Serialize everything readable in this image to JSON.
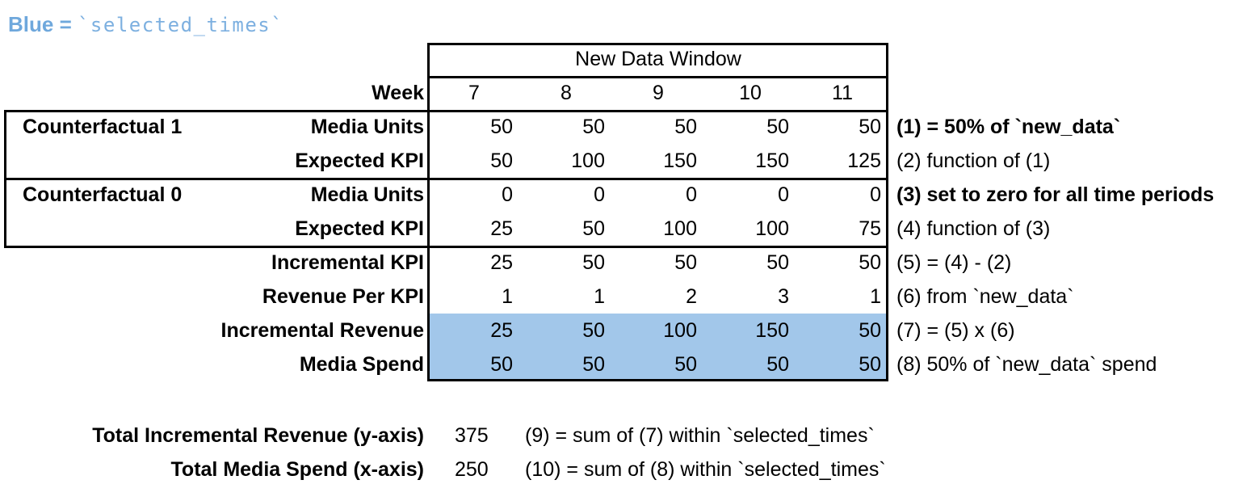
{
  "legend": {
    "prefix": "Blue = ",
    "code": "`selected_times`"
  },
  "colors": {
    "highlight_blue": "#a2c7ea",
    "legend_blue": "#6fa8dc",
    "border": "#000000"
  },
  "table": {
    "header": "New Data Window",
    "week_label": "Week",
    "weeks": [
      "7",
      "8",
      "9",
      "10",
      "11"
    ],
    "groups": [
      {
        "label": "Counterfactual 1"
      },
      {
        "label": "Counterfactual 0"
      }
    ],
    "rows": [
      {
        "label": "Media Units",
        "values": [
          "50",
          "50",
          "50",
          "50",
          "50"
        ],
        "note": "(1) = 50% of `new_data`"
      },
      {
        "label": "Expected KPI",
        "values": [
          "50",
          "100",
          "150",
          "150",
          "125"
        ],
        "note": "(2) function of (1)"
      },
      {
        "label": "Media Units",
        "values": [
          "0",
          "0",
          "0",
          "0",
          "0"
        ],
        "note": "(3) set to zero for all time periods"
      },
      {
        "label": "Expected KPI",
        "values": [
          "25",
          "50",
          "100",
          "100",
          "75"
        ],
        "note": "(4) function of (3)"
      },
      {
        "label": "Incremental KPI",
        "values": [
          "25",
          "50",
          "50",
          "50",
          "50"
        ],
        "note": "(5) = (4) - (2)"
      },
      {
        "label": "Revenue Per KPI",
        "values": [
          "1",
          "1",
          "2",
          "3",
          "1"
        ],
        "note": "(6) from `new_data`"
      },
      {
        "label": "Incremental Revenue",
        "values": [
          "25",
          "50",
          "100",
          "150",
          "50"
        ],
        "note": "(7) = (5) x (6)",
        "highlighted": true
      },
      {
        "label": "Media Spend",
        "values": [
          "50",
          "50",
          "50",
          "50",
          "50"
        ],
        "note": "(8) 50% of `new_data` spend",
        "highlighted": true
      }
    ]
  },
  "totals": [
    {
      "label": "Total Incremental Revenue (y-axis)",
      "value": "375",
      "note": "(9) = sum of (7) within `selected_times`"
    },
    {
      "label": "Total Media Spend (x-axis)",
      "value": "250",
      "note": "(10) = sum of (8) within `selected_times`"
    }
  ]
}
